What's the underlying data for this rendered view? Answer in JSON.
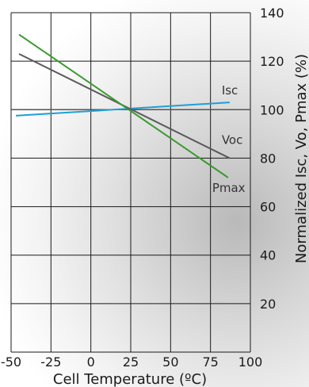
{
  "chart_data": {
    "type": "line",
    "xlabel": "Cell Temperature (ºC)",
    "ylabel": "Normalized Isc, Vo,  Pmax (%)",
    "xlim": [
      -50,
      100
    ],
    "ylim": [
      0,
      140
    ],
    "x_ticks": [
      "-50",
      "-25",
      "0",
      "25",
      "50",
      "75",
      "100"
    ],
    "y_ticks": [
      "20",
      "40",
      "60",
      "80",
      "100",
      "120",
      "140"
    ],
    "grid": true,
    "y_axis_side": "right",
    "series": [
      {
        "name": "Isc",
        "x": [
          -47,
          87
        ],
        "y": [
          97.5,
          103
        ],
        "color": "#1e9fd6"
      },
      {
        "name": "Voc",
        "x": [
          -45,
          87
        ],
        "y": [
          123,
          80
        ],
        "color": "#5a5a5a"
      },
      {
        "name": "Pmax",
        "x": [
          -45,
          86
        ],
        "y": [
          131,
          72
        ],
        "color": "#3a9a2e"
      }
    ],
    "reference_line": {
      "y": 100,
      "color": "#555555"
    }
  }
}
